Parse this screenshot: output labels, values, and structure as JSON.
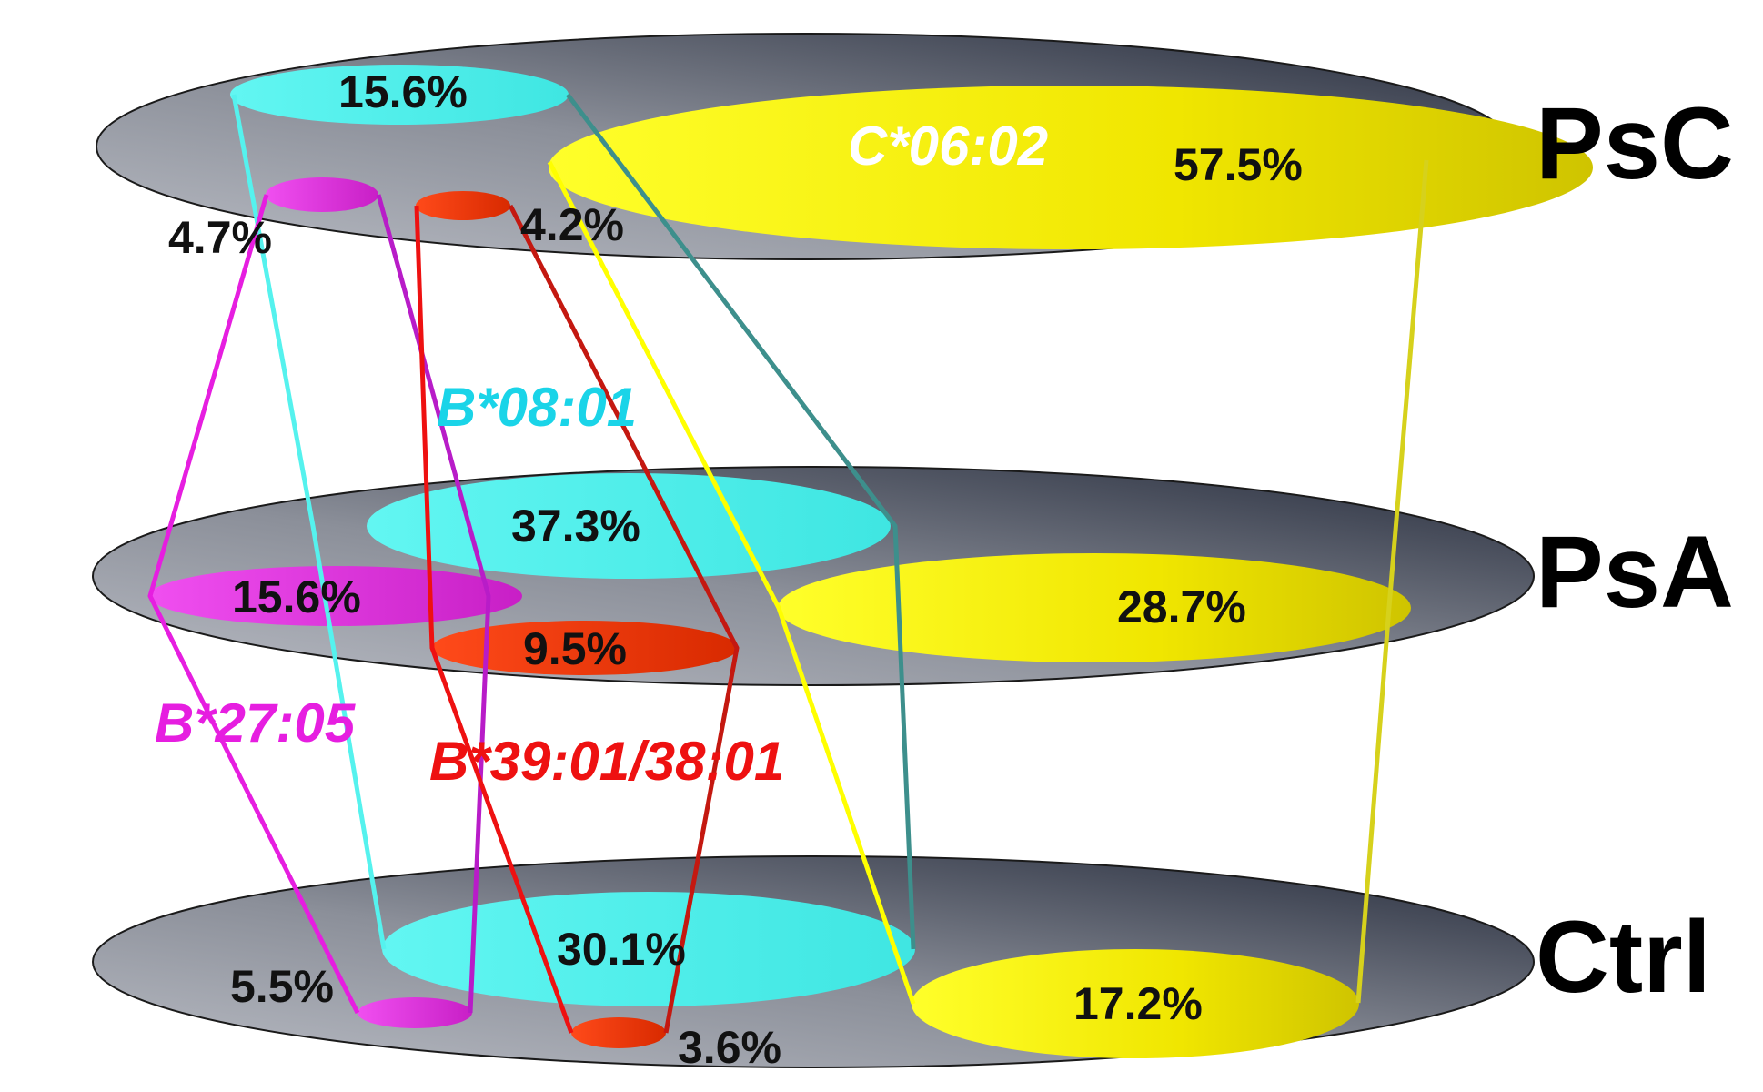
{
  "layers": {
    "psc": {
      "label": "PsC"
    },
    "psa": {
      "label": "PsA"
    },
    "ctrl": {
      "label": "Ctrl"
    }
  },
  "alleles": {
    "c0602": {
      "name": "C*06:02",
      "color": "#f5ec00",
      "line_color": "#d6d11c",
      "line_color_alt": "#ffff00",
      "psc": "57.5%",
      "psa": "28.7%",
      "ctrl": "17.2%"
    },
    "b0801": {
      "name": "B*08:01",
      "color": "#55f2ee",
      "label_color": "#1ad4e8",
      "line_color_alt": "#3d8f8c",
      "psc": "15.6%",
      "psa": "37.3%",
      "ctrl": "30.1%"
    },
    "b2705": {
      "name": "B*27:05",
      "color": "#e638e0",
      "label_color": "#e61ee0",
      "psc": "4.7%",
      "psa": "15.6%",
      "ctrl": "5.5%"
    },
    "b3901": {
      "name": "B*39:01/38:01",
      "color": "#ff3300",
      "label_color": "#ee1111",
      "psc": "4.2%",
      "psa": "9.5%",
      "ctrl": "3.6%"
    }
  }
}
